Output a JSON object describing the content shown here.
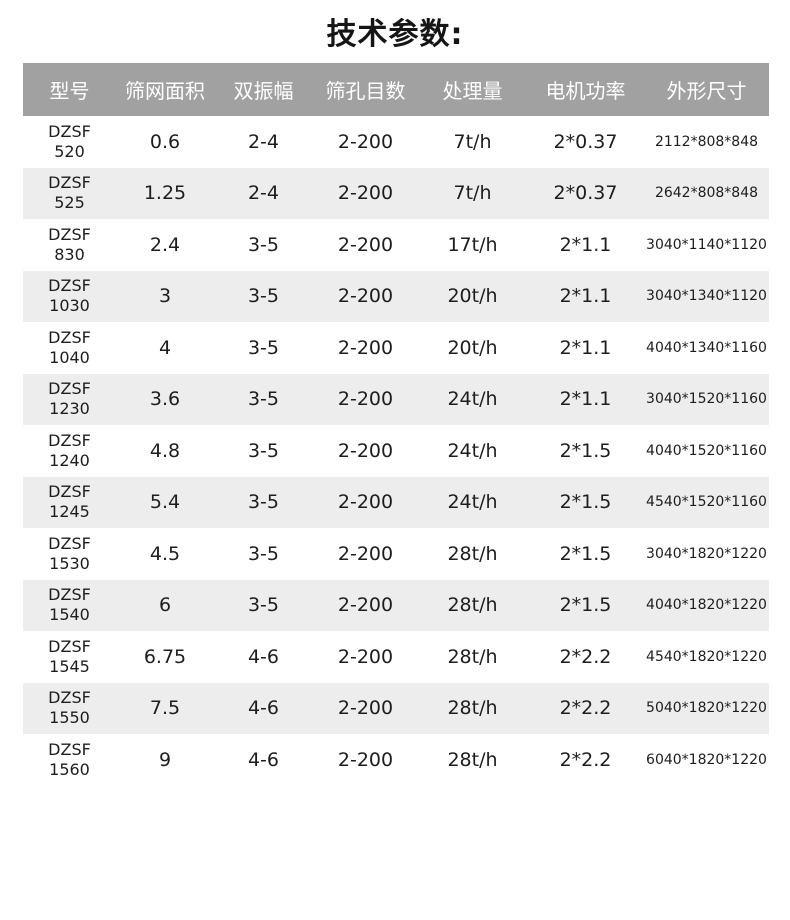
{
  "chart_data": {
    "type": "table",
    "title": "技术参数:",
    "columns": [
      "型号",
      "筛网面积",
      "双振幅",
      "筛孔目数",
      "处理量",
      "电机功率",
      "外形尺寸"
    ],
    "rows": [
      {
        "model": "DZSF 520",
        "screen_area": "0.6",
        "amplitude": "2-4",
        "mesh_count": "2-200",
        "capacity": "7t/h",
        "motor_power": "2*0.37",
        "dimensions": "2112*808*848"
      },
      {
        "model": "DZSF 525",
        "screen_area": "1.25",
        "amplitude": "2-4",
        "mesh_count": "2-200",
        "capacity": "7t/h",
        "motor_power": "2*0.37",
        "dimensions": "2642*808*848"
      },
      {
        "model": "DZSF 830",
        "screen_area": "2.4",
        "amplitude": "3-5",
        "mesh_count": "2-200",
        "capacity": "17t/h",
        "motor_power": "2*1.1",
        "dimensions": "3040*1140*1120"
      },
      {
        "model": "DZSF 1030",
        "screen_area": "3",
        "amplitude": "3-5",
        "mesh_count": "2-200",
        "capacity": "20t/h",
        "motor_power": "2*1.1",
        "dimensions": "3040*1340*1120"
      },
      {
        "model": "DZSF 1040",
        "screen_area": "4",
        "amplitude": "3-5",
        "mesh_count": "2-200",
        "capacity": "20t/h",
        "motor_power": "2*1.1",
        "dimensions": "4040*1340*1160"
      },
      {
        "model": "DZSF 1230",
        "screen_area": "3.6",
        "amplitude": "3-5",
        "mesh_count": "2-200",
        "capacity": "24t/h",
        "motor_power": "2*1.1",
        "dimensions": "3040*1520*1160"
      },
      {
        "model": "DZSF 1240",
        "screen_area": "4.8",
        "amplitude": "3-5",
        "mesh_count": "2-200",
        "capacity": "24t/h",
        "motor_power": "2*1.5",
        "dimensions": "4040*1520*1160"
      },
      {
        "model": "DZSF 1245",
        "screen_area": "5.4",
        "amplitude": "3-5",
        "mesh_count": "2-200",
        "capacity": "24t/h",
        "motor_power": "2*1.5",
        "dimensions": "4540*1520*1160"
      },
      {
        "model": "DZSF 1530",
        "screen_area": "4.5",
        "amplitude": "3-5",
        "mesh_count": "2-200",
        "capacity": "28t/h",
        "motor_power": "2*1.5",
        "dimensions": "3040*1820*1220"
      },
      {
        "model": "DZSF 1540",
        "screen_area": "6",
        "amplitude": "3-5",
        "mesh_count": "2-200",
        "capacity": "28t/h",
        "motor_power": "2*1.5",
        "dimensions": "4040*1820*1220"
      },
      {
        "model": "DZSF 1545",
        "screen_area": "6.75",
        "amplitude": "4-6",
        "mesh_count": "2-200",
        "capacity": "28t/h",
        "motor_power": "2*2.2",
        "dimensions": "4540*1820*1220"
      },
      {
        "model": "DZSF 1550",
        "screen_area": "7.5",
        "amplitude": "4-6",
        "mesh_count": "2-200",
        "capacity": "28t/h",
        "motor_power": "2*2.2",
        "dimensions": "5040*1820*1220"
      },
      {
        "model": "DZSF 1560",
        "screen_area": "9",
        "amplitude": "4-6",
        "mesh_count": "2-200",
        "capacity": "28t/h",
        "motor_power": "2*2.2",
        "dimensions": "6040*1820*1220"
      }
    ],
    "layout": {
      "legend": "none",
      "grid": "alternating-row-shading"
    }
  },
  "colors": {
    "header_bg": "#a1a1a1",
    "header_text": "#ffffff",
    "row_alt_bg": "#ededed",
    "body_text": "#1d1d1d",
    "title_text": "#151515",
    "page_bg": "#ffffff"
  }
}
